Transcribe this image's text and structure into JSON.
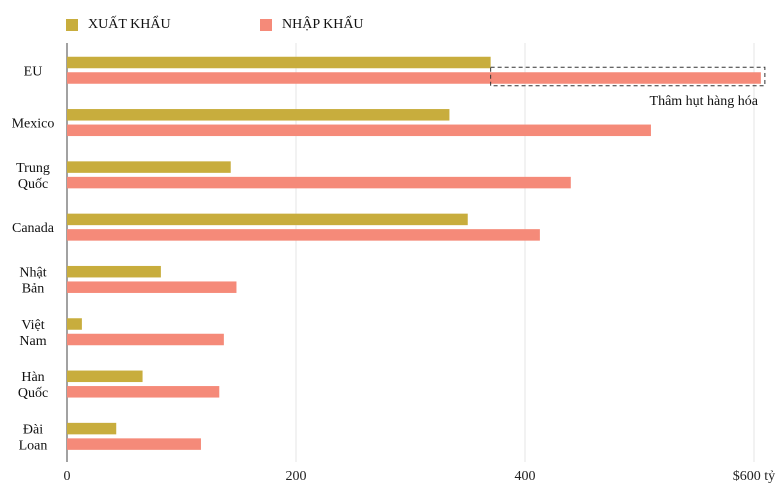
{
  "colors": {
    "export": "#c8ad3d",
    "import": "#f58a79",
    "grid": "#e6e6e6",
    "axis": "#444444"
  },
  "legend": {
    "export_label": "XUẤT KHẨU",
    "import_label": "NHẬP KHẨU"
  },
  "chart_data": {
    "type": "bar",
    "orientation": "horizontal",
    "categories": [
      [
        "EU"
      ],
      [
        "Mexico"
      ],
      [
        "Trung",
        "Quốc"
      ],
      [
        "Canada"
      ],
      [
        "Nhật",
        "Bản"
      ],
      [
        "Việt",
        "Nam"
      ],
      [
        "Hàn",
        "Quốc"
      ],
      [
        "Đài",
        "Loan"
      ]
    ],
    "series": [
      {
        "name": "XUẤT KHẨU",
        "values": [
          370,
          334,
          143,
          350,
          82,
          13,
          66,
          43
        ]
      },
      {
        "name": "NHẬP KHẨU",
        "values": [
          606,
          510,
          440,
          413,
          148,
          137,
          133,
          117
        ]
      }
    ],
    "xlim": [
      0,
      600
    ],
    "xticks": [
      0,
      200,
      400,
      600
    ],
    "xtick_labels": [
      "0",
      "200",
      "400",
      "$600 tỷ"
    ],
    "grid": true,
    "legend_position": "top-left",
    "annotation": {
      "text": "Thâm hụt hàng hóa",
      "category_index": 0,
      "from_value": 370,
      "to_value": 606
    }
  }
}
